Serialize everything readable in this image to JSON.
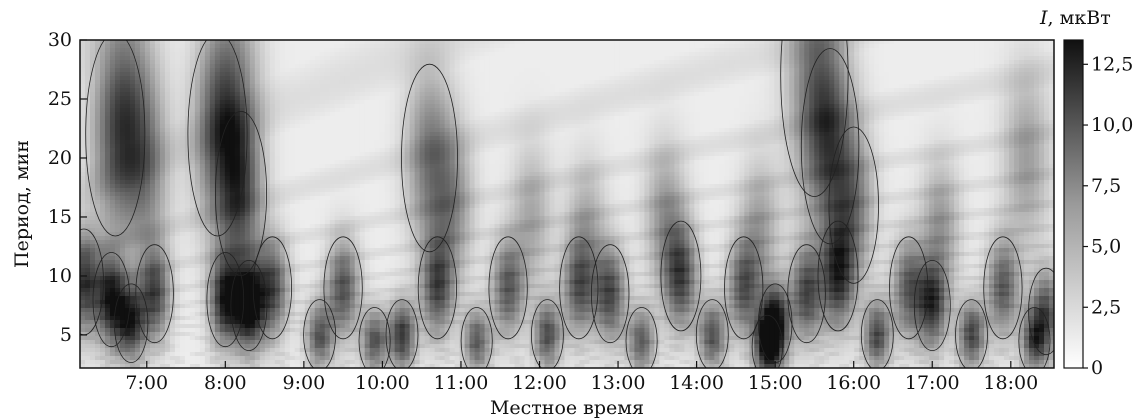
{
  "chart_data": {
    "type": "heatmap",
    "xlabel": "Местное время",
    "ylabel": "Период, мин",
    "x_ticks": [
      "7:00",
      "8:00",
      "9:00",
      "10:00",
      "11:00",
      "12:00",
      "13:00",
      "14:00",
      "15:00",
      "16:00",
      "17:00",
      "18:00"
    ],
    "x_tick_hours": [
      7,
      8,
      9,
      10,
      11,
      12,
      13,
      14,
      15,
      16,
      17,
      18
    ],
    "xlim_hours": [
      6.15,
      18.55
    ],
    "y_ticks": [
      "5",
      "10",
      "15",
      "20",
      "25",
      "30"
    ],
    "y_tick_values": [
      5,
      10,
      15,
      20,
      25,
      30
    ],
    "ylim": [
      2.2,
      30
    ],
    "colorbar": {
      "label_var": "I",
      "label_unit": ", мкВт",
      "ticks": [
        "0",
        "2,5",
        "5,0",
        "7,5",
        "10,0",
        "12,5"
      ],
      "tick_values": [
        0,
        2.5,
        5.0,
        7.5,
        10.0,
        12.5
      ],
      "range": [
        0,
        13.5
      ]
    },
    "hotspots": [
      {
        "x": 6.6,
        "y": 22,
        "v": 6.5
      },
      {
        "x": 6.8,
        "y": 25,
        "v": 4.5
      },
      {
        "x": 7.0,
        "y": 19,
        "v": 5
      },
      {
        "x": 7.9,
        "y": 22,
        "v": 6.5
      },
      {
        "x": 8.2,
        "y": 17,
        "v": 7.5
      },
      {
        "x": 8.1,
        "y": 26,
        "v": 5
      },
      {
        "x": 10.6,
        "y": 20,
        "v": 6.5
      },
      {
        "x": 10.9,
        "y": 16,
        "v": 5
      },
      {
        "x": 15.5,
        "y": 27,
        "v": 6
      },
      {
        "x": 15.7,
        "y": 21,
        "v": 7
      },
      {
        "x": 16.0,
        "y": 16,
        "v": 6
      },
      {
        "x": 13.6,
        "y": 15,
        "v": 5
      },
      {
        "x": 11.9,
        "y": 15,
        "v": 4
      },
      {
        "x": 12.6,
        "y": 14,
        "v": 4
      },
      {
        "x": 14.8,
        "y": 14,
        "v": 4.5
      },
      {
        "x": 17.1,
        "y": 14,
        "v": 5
      },
      {
        "x": 18.2,
        "y": 20,
        "v": 4.5
      },
      {
        "x": 6.2,
        "y": 9.5,
        "v": 10
      },
      {
        "x": 6.55,
        "y": 8,
        "v": 11
      },
      {
        "x": 6.8,
        "y": 6,
        "v": 10
      },
      {
        "x": 7.1,
        "y": 8.5,
        "v": 9
      },
      {
        "x": 8.0,
        "y": 8,
        "v": 11
      },
      {
        "x": 8.3,
        "y": 7.5,
        "v": 13
      },
      {
        "x": 8.6,
        "y": 9,
        "v": 9
      },
      {
        "x": 9.2,
        "y": 5,
        "v": 8
      },
      {
        "x": 9.5,
        "y": 9,
        "v": 8.5
      },
      {
        "x": 9.9,
        "y": 4.5,
        "v": 8
      },
      {
        "x": 10.25,
        "y": 5,
        "v": 10
      },
      {
        "x": 10.7,
        "y": 9,
        "v": 8.5
      },
      {
        "x": 11.2,
        "y": 4.5,
        "v": 8
      },
      {
        "x": 11.6,
        "y": 9,
        "v": 8
      },
      {
        "x": 12.1,
        "y": 5,
        "v": 8.5
      },
      {
        "x": 12.5,
        "y": 9,
        "v": 7.5
      },
      {
        "x": 12.9,
        "y": 8.5,
        "v": 9
      },
      {
        "x": 13.3,
        "y": 4.5,
        "v": 8
      },
      {
        "x": 13.8,
        "y": 10,
        "v": 9
      },
      {
        "x": 14.2,
        "y": 5,
        "v": 8.5
      },
      {
        "x": 14.6,
        "y": 9,
        "v": 8
      },
      {
        "x": 15.0,
        "y": 6,
        "v": 12.5
      },
      {
        "x": 14.9,
        "y": 4,
        "v": 11
      },
      {
        "x": 15.4,
        "y": 8.5,
        "v": 9
      },
      {
        "x": 15.8,
        "y": 10,
        "v": 9.5
      },
      {
        "x": 16.3,
        "y": 5,
        "v": 9
      },
      {
        "x": 16.7,
        "y": 9,
        "v": 8
      },
      {
        "x": 17.0,
        "y": 7.5,
        "v": 9.5
      },
      {
        "x": 17.5,
        "y": 5,
        "v": 9
      },
      {
        "x": 17.9,
        "y": 9,
        "v": 8
      },
      {
        "x": 18.3,
        "y": 4.5,
        "v": 8.5
      },
      {
        "x": 18.45,
        "y": 7,
        "v": 8
      }
    ]
  }
}
